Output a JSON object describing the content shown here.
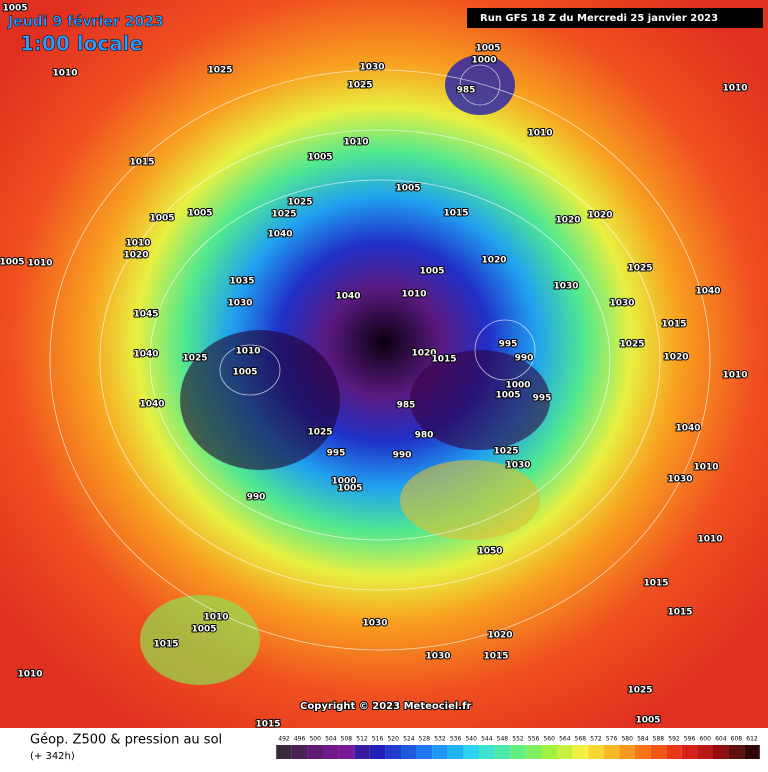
{
  "header": {
    "date": "Jeudi 9 février 2023",
    "time": "1:00 locale",
    "run": "Run GFS 18 Z du Mercredi 25 janvier 2023"
  },
  "copyright": "Copyright © 2023 Meteociel.fr",
  "legend": {
    "title": "Géop. Z500 & pression au sol",
    "subtitle": "(+ 342h)",
    "ticks": [
      492,
      496,
      500,
      504,
      508,
      512,
      516,
      520,
      524,
      528,
      532,
      536,
      540,
      544,
      548,
      552,
      556,
      560,
      564,
      568,
      572,
      576,
      580,
      584,
      588,
      592,
      596,
      600,
      604,
      608,
      612
    ],
    "colors": [
      "#3a2a40",
      "#4a1f55",
      "#5c1a70",
      "#6e1a8a",
      "#7a1a9a",
      "#3a1aa0",
      "#2020b8",
      "#1e3cd0",
      "#1e5ae0",
      "#1e78f0",
      "#1e96f8",
      "#20b4f8",
      "#30d0f0",
      "#40e0d0",
      "#50e8a8",
      "#60f080",
      "#80f060",
      "#a0f040",
      "#c8f040",
      "#f0f040",
      "#f8d830",
      "#f8b828",
      "#f89820",
      "#f87818",
      "#f05818",
      "#e83818",
      "#d82018",
      "#b81818",
      "#901010",
      "#601010",
      "#300808"
    ]
  },
  "isobar_labels": [
    1005,
    1010,
    1025,
    1030,
    1025,
    1005,
    1000,
    985,
    1010,
    1010,
    1015,
    1010,
    1005,
    1005,
    1005,
    1005,
    1025,
    1025,
    1040,
    1010,
    1020,
    1005,
    1010,
    1015,
    1020,
    1020,
    1005,
    1020,
    1030,
    1025,
    1040,
    1035,
    1030,
    1040,
    1010,
    1030,
    1015,
    1045,
    1010,
    1040,
    1025,
    1005,
    1020,
    1015,
    995,
    990,
    1025,
    1020,
    1010,
    1000,
    1005,
    995,
    985,
    1040,
    1025,
    980,
    1040,
    995,
    990,
    1025,
    1030,
    1010,
    1030,
    1000,
    1005,
    990,
    1050,
    1010,
    1010,
    1005,
    1015,
    1030,
    1020,
    1030,
    1015,
    1015,
    1015,
    1010,
    1025,
    1005,
    1015
  ]
}
